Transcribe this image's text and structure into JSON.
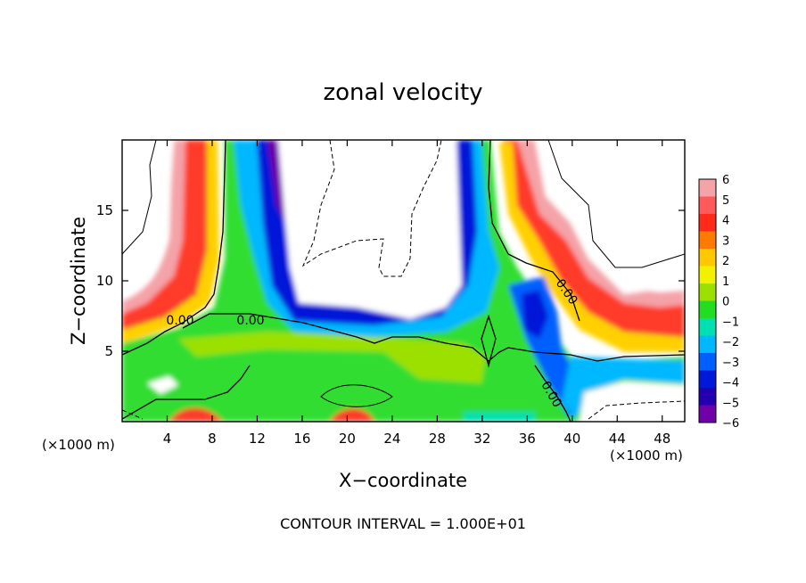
{
  "chart_data": {
    "type": "heatmap",
    "title": "zonal velocity",
    "xlabel": "X−coordinate",
    "ylabel": "Z−coordinate",
    "x_unit": "(×1000 m)",
    "y_unit": "(×1000 m)",
    "xlim": [
      0,
      50
    ],
    "ylim": [
      0,
      20
    ],
    "x_ticks": [
      4,
      8,
      12,
      16,
      20,
      24,
      28,
      32,
      36,
      40,
      44,
      48
    ],
    "y_ticks": [
      5,
      10,
      15
    ],
    "x_tick_labels": [
      "4",
      "8",
      "12",
      "16",
      "20",
      "24",
      "28",
      "32",
      "36",
      "40",
      "44",
      "48"
    ],
    "y_tick_labels": [
      "5",
      "10",
      "15"
    ],
    "colorbar": {
      "levels": [
        6,
        5,
        4,
        3,
        2,
        1,
        0,
        -1,
        -2,
        -3,
        -4,
        -5,
        -6
      ],
      "labels": [
        "6",
        "5",
        "4",
        "3",
        "2",
        "1",
        "0",
        "−1",
        "−2",
        "−3",
        "−4",
        "−5",
        "−6"
      ],
      "colors": [
        "#f4a3a8",
        "#ff5a5a",
        "#ff2a1a",
        "#ff7a00",
        "#ffc800",
        "#f2f200",
        "#9ce000",
        "#22dd22",
        "#00e0b0",
        "#00b8ff",
        "#0060ff",
        "#0018d8",
        "#2200b0",
        "#7000a8"
      ]
    },
    "contour_labels": [
      "0.00",
      "0.00",
      "0.00",
      "0.00"
    ],
    "annotation": "CONTOUR INTERVAL = 1.000E+01",
    "grid": false
  }
}
